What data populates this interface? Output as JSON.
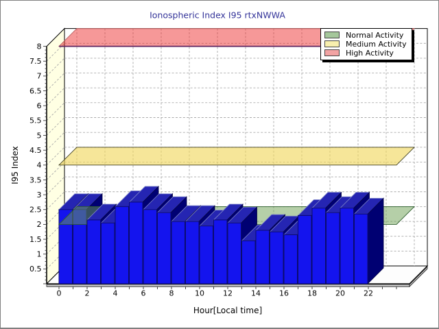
{
  "chart_data": {
    "type": "bar",
    "title": "Ionospheric Index I95 rtxNWWA",
    "xlabel": "Hour[Local time]",
    "ylabel": "I95 Index",
    "categories": [
      0,
      1,
      2,
      3,
      4,
      5,
      6,
      7,
      8,
      9,
      10,
      11,
      12,
      13,
      14,
      15,
      16,
      17,
      18,
      19,
      20,
      21
    ],
    "values": [
      2.5,
      2.5,
      2.15,
      2.05,
      2.6,
      2.75,
      2.5,
      2.4,
      2.1,
      2.1,
      1.95,
      2.15,
      2.05,
      1.45,
      1.8,
      1.75,
      1.65,
      2.3,
      2.55,
      2.4,
      2.55,
      2.35
    ],
    "ylim": [
      0,
      8
    ],
    "ytick_step": 0.5,
    "yminor_step": 0.125,
    "xticks": [
      0,
      2,
      4,
      6,
      8,
      10,
      12,
      14,
      16,
      18,
      20,
      22
    ],
    "grid": true,
    "style": "3d",
    "legend_position": "top-right",
    "bar_color": "#1414ee",
    "reference_planes": [
      {
        "label": "Normal Activity",
        "value": 2,
        "color": "#6b9f51",
        "opacity": 0.5,
        "edge": "#2e5e2e",
        "swatch": "#a5c79b"
      },
      {
        "label": "Medium Activity",
        "value": 4,
        "color": "#f0d75a",
        "opacity": 0.62,
        "edge": "#3f3f22",
        "swatch": "#f8efae"
      },
      {
        "label": "High Activity",
        "value": 8,
        "color": "#ed3131",
        "opacity": 0.5,
        "edge": "#b86060",
        "swatch": "#f2a3a3"
      }
    ]
  }
}
